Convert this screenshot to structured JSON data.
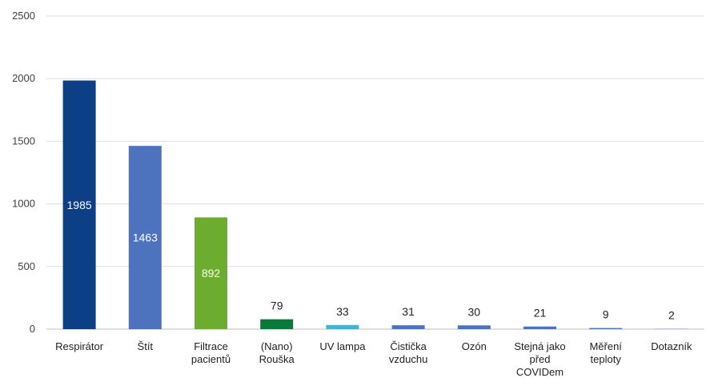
{
  "chart_data": {
    "type": "bar",
    "title": "",
    "xlabel": "",
    "ylabel": "",
    "ylim": [
      0,
      2500
    ],
    "yticks": [
      0,
      500,
      1000,
      1500,
      2000,
      2500
    ],
    "grid": true,
    "categories": [
      [
        "Respirátor"
      ],
      [
        "Štít"
      ],
      [
        "Filtrace",
        "pacientů"
      ],
      [
        "(Nano)",
        "Rouška"
      ],
      [
        "UV lampa"
      ],
      [
        "Čistička",
        "vzduchu"
      ],
      [
        "Ozón"
      ],
      [
        "Stejná jako",
        "před",
        "COVIDem"
      ],
      [
        "Měření",
        "teploty"
      ],
      [
        "Dotazník"
      ]
    ],
    "values": [
      1985,
      1463,
      892,
      79,
      33,
      31,
      30,
      21,
      9,
      2
    ],
    "colors": [
      "#0d3f87",
      "#4d73bf",
      "#6cac2f",
      "#0a7a3a",
      "#45b3cf",
      "#4d73bf",
      "#4d73bf",
      "#4d73bf",
      "#4d73bf",
      "#4d73bf"
    ],
    "label_inside": [
      true,
      true,
      true,
      false,
      false,
      false,
      false,
      false,
      false,
      false
    ]
  }
}
